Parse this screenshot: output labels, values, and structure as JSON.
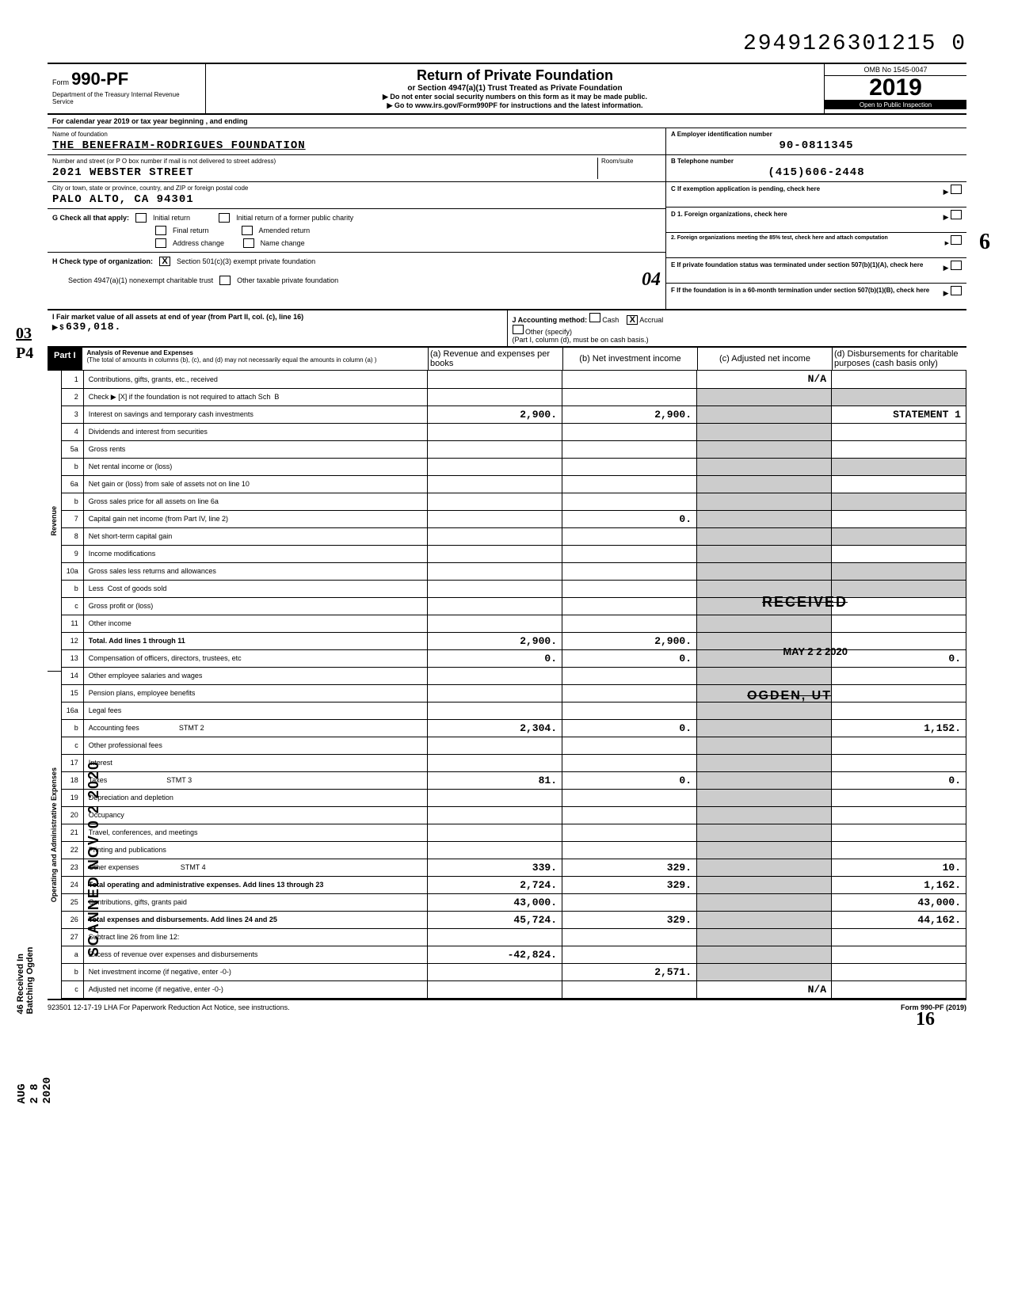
{
  "doc_number": "2949126301215 0",
  "form": {
    "label": "Form",
    "number": "990-PF",
    "dept": "Department of the Treasury\nInternal Revenue Service"
  },
  "header": {
    "title": "Return of Private Foundation",
    "sub": "or Section 4947(a)(1) Trust Treated as Private Foundation",
    "instr1": "▶ Do not enter social security numbers on this form as it may be made public.",
    "instr2": "▶ Go to www.irs.gov/Form990PF for instructions and the latest information.",
    "omb": "OMB No  1545-0047",
    "year": "2019",
    "inspection": "Open to Public Inspection"
  },
  "cal_year": "For calendar year 2019 or tax year beginning                                     , and ending",
  "foundation": {
    "name_label": "Name of foundation",
    "name": "THE BENEFRAIM-RODRIGUES FOUNDATION",
    "addr_label": "Number and street (or P O  box number if mail is not delivered to street address)",
    "room_label": "Room/suite",
    "addr": "2021 WEBSTER STREET",
    "city_label": "City or town, state or province, country, and ZIP or foreign postal code",
    "city": "PALO ALTO, CA  94301"
  },
  "boxA": {
    "label": "A  Employer identification number",
    "value": "90-0811345"
  },
  "boxB": {
    "label": "B  Telephone number",
    "value": "(415)606-2448"
  },
  "boxC": {
    "label": "C  If exemption application is pending, check here"
  },
  "boxD1": {
    "label": "D  1. Foreign organizations, check here"
  },
  "boxD2": {
    "label": "2. Foreign organizations meeting the 85% test, check here and attach computation"
  },
  "boxE": {
    "label": "E  If private foundation status was terminated under section 507(b)(1)(A), check here"
  },
  "boxF": {
    "label": "F  If the foundation is in a 60-month termination under section 507(b)(1)(B), check here"
  },
  "sectionG": {
    "label": "G  Check all that apply:",
    "opts": [
      "Initial return",
      "Final return",
      "Address change",
      "Initial return of a former public charity",
      "Amended return",
      "Name change"
    ]
  },
  "sectionH": {
    "label": "H  Check type of organization:",
    "opt1": "Section 501(c)(3) exempt private foundation",
    "opt2": "Section 4947(a)(1) nonexempt charitable trust",
    "opt3": "Other taxable private foundation"
  },
  "sectionI": {
    "label": "I  Fair market value of all assets at end of year (from Part II, col. (c), line 16)",
    "value": "639,018.",
    "prefix": "▶ $"
  },
  "sectionJ": {
    "label": "J  Accounting method:",
    "cash": "Cash",
    "accrual": "Accrual",
    "other": "Other (specify)",
    "note": "(Part I, column (d), must be on cash basis.)"
  },
  "handwritten": {
    "topright": "6",
    "oh_four": "04",
    "oh_three": "03",
    "p4": "P4",
    "sixteen": "16"
  },
  "part1": {
    "label": "Part I",
    "title": "Analysis of Revenue and Expenses",
    "note": "(The total of amounts in columns (b), (c), and (d) may not necessarily equal the amounts in column (a) )",
    "colA": "(a) Revenue and expenses per books",
    "colB": "(b) Net investment income",
    "colC": "(c) Adjusted net income",
    "colD": "(d) Disbursements for charitable purposes (cash basis only)"
  },
  "sidebars": {
    "revenue": "Revenue",
    "expenses": "Operating and Administrative Expenses"
  },
  "rows": [
    {
      "n": "1",
      "label": "Contributions, gifts, grants, etc., received",
      "a": "",
      "b": "",
      "c": "N/A",
      "d": ""
    },
    {
      "n": "2",
      "label": "Check ▶ [X] if the foundation is not required to attach Sch  B",
      "a": "",
      "b": "",
      "c": "",
      "d": ""
    },
    {
      "n": "3",
      "label": "Interest on savings and temporary cash investments",
      "a": "2,900.",
      "b": "2,900.",
      "c": "",
      "d": "STATEMENT 1"
    },
    {
      "n": "4",
      "label": "Dividends and interest from securities",
      "a": "",
      "b": "",
      "c": "",
      "d": ""
    },
    {
      "n": "5a",
      "label": "Gross rents",
      "a": "",
      "b": "",
      "c": "",
      "d": ""
    },
    {
      "n": "b",
      "label": "Net rental income or (loss)",
      "a": "",
      "b": "",
      "c": "",
      "d": ""
    },
    {
      "n": "6a",
      "label": "Net gain or (loss) from sale of assets not on line 10",
      "a": "",
      "b": "",
      "c": "",
      "d": ""
    },
    {
      "n": "b",
      "label": "Gross sales price for all assets on line 6a",
      "a": "",
      "b": "",
      "c": "",
      "d": ""
    },
    {
      "n": "7",
      "label": "Capital gain net income (from Part IV, line 2)",
      "a": "",
      "b": "0.",
      "c": "",
      "d": ""
    },
    {
      "n": "8",
      "label": "Net short-term capital gain",
      "a": "",
      "b": "",
      "c": "",
      "d": ""
    },
    {
      "n": "9",
      "label": "Income modifications",
      "a": "",
      "b": "",
      "c": "",
      "d": ""
    },
    {
      "n": "10a",
      "label": "Gross sales less returns and allowances",
      "a": "",
      "b": "",
      "c": "",
      "d": ""
    },
    {
      "n": "b",
      "label": "Less  Cost of goods sold",
      "a": "",
      "b": "",
      "c": "",
      "d": ""
    },
    {
      "n": "c",
      "label": "Gross profit or (loss)",
      "a": "",
      "b": "",
      "c": "",
      "d": ""
    },
    {
      "n": "11",
      "label": "Other income",
      "a": "",
      "b": "",
      "c": "",
      "d": ""
    },
    {
      "n": "12",
      "label": "Total. Add lines 1 through 11",
      "a": "2,900.",
      "b": "2,900.",
      "c": "",
      "d": ""
    },
    {
      "n": "13",
      "label": "Compensation of officers, directors, trustees, etc",
      "a": "0.",
      "b": "0.",
      "c": "",
      "d": "0."
    },
    {
      "n": "14",
      "label": "Other employee salaries and wages",
      "a": "",
      "b": "",
      "c": "",
      "d": ""
    },
    {
      "n": "15",
      "label": "Pension plans, employee benefits",
      "a": "",
      "b": "",
      "c": "",
      "d": ""
    },
    {
      "n": "16a",
      "label": "Legal fees",
      "a": "",
      "b": "",
      "c": "",
      "d": ""
    },
    {
      "n": "b",
      "label": "Accounting fees                    STMT 2",
      "a": "2,304.",
      "b": "0.",
      "c": "",
      "d": "1,152."
    },
    {
      "n": "c",
      "label": "Other professional fees",
      "a": "",
      "b": "",
      "c": "",
      "d": ""
    },
    {
      "n": "17",
      "label": "Interest",
      "a": "",
      "b": "",
      "c": "",
      "d": ""
    },
    {
      "n": "18",
      "label": "Taxes                              STMT 3",
      "a": "81.",
      "b": "0.",
      "c": "",
      "d": "0."
    },
    {
      "n": "19",
      "label": "Depreciation and depletion",
      "a": "",
      "b": "",
      "c": "",
      "d": ""
    },
    {
      "n": "20",
      "label": "Occupancy",
      "a": "",
      "b": "",
      "c": "",
      "d": ""
    },
    {
      "n": "21",
      "label": "Travel, conferences, and meetings",
      "a": "",
      "b": "",
      "c": "",
      "d": ""
    },
    {
      "n": "22",
      "label": "Printing and publications",
      "a": "",
      "b": "",
      "c": "",
      "d": ""
    },
    {
      "n": "23",
      "label": "Other expenses                     STMT 4",
      "a": "339.",
      "b": "329.",
      "c": "",
      "d": "10."
    },
    {
      "n": "24",
      "label": "Total operating and administrative expenses. Add lines 13 through 23",
      "a": "2,724.",
      "b": "329.",
      "c": "",
      "d": "1,162."
    },
    {
      "n": "25",
      "label": "Contributions, gifts, grants paid",
      "a": "43,000.",
      "b": "",
      "c": "",
      "d": "43,000."
    },
    {
      "n": "26",
      "label": "Total expenses and disbursements. Add lines 24 and 25",
      "a": "45,724.",
      "b": "329.",
      "c": "",
      "d": "44,162."
    },
    {
      "n": "27",
      "label": "Subtract line 26 from line 12:",
      "a": "",
      "b": "",
      "c": "",
      "d": ""
    },
    {
      "n": "a",
      "label": "Excess of revenue over expenses and disbursements",
      "a": "-42,824.",
      "b": "",
      "c": "",
      "d": ""
    },
    {
      "n": "b",
      "label": "Net investment income (if negative, enter -0-)",
      "a": "",
      "b": "2,571.",
      "c": "",
      "d": ""
    },
    {
      "n": "c",
      "label": "Adjusted net income (if negative, enter -0-)",
      "a": "",
      "b": "",
      "c": "N/A",
      "d": ""
    }
  ],
  "stamps": {
    "received": "RECEIVED",
    "maydate": "MAY 2 2 2020",
    "ogden": "OGDEN, UT",
    "scanned": "SCANNED NOV 0 2 2020",
    "aug": "AUG 2 8 2020",
    "batching": "46 Received In Batching Ogden"
  },
  "footer": {
    "left": "923501  12-17-19   LHA   For Paperwork Reduction Act Notice, see instructions.",
    "right": "Form 990-PF (2019)"
  },
  "colors": {
    "text": "#000000",
    "bg": "#ffffff",
    "shade": "#cccccc",
    "border": "#000000"
  }
}
